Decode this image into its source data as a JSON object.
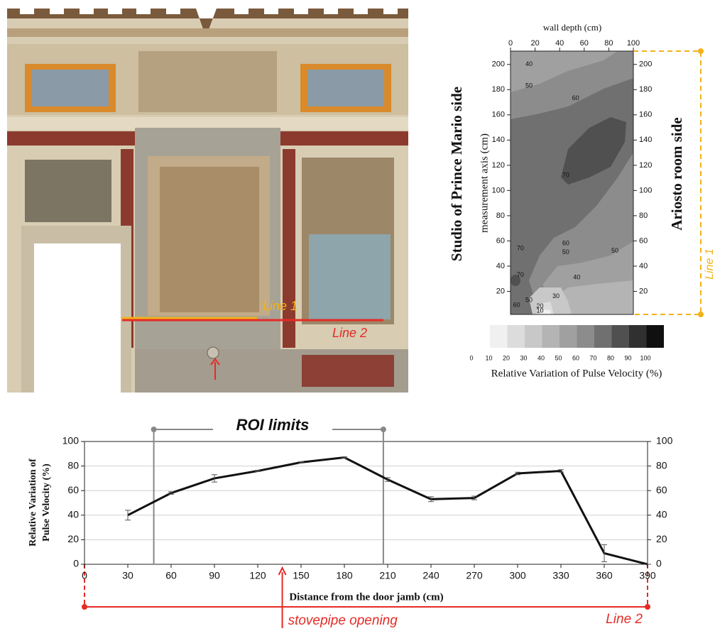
{
  "photo": {
    "line_labels": [
      "Line  1",
      "Line  2"
    ]
  },
  "chart_data": [
    {
      "type": "contour",
      "title_left": "Studio of Prince Mario side",
      "title_right": "Ariosto room side",
      "xlabel": "wall depth (cm)",
      "ylabel": "measurement axis (cm)",
      "xlim": [
        0,
        100
      ],
      "xticks": [
        0,
        20,
        40,
        60,
        80,
        100
      ],
      "ylim": [
        0,
        210
      ],
      "yticks": [
        20,
        40,
        60,
        80,
        100,
        120,
        140,
        160,
        180,
        200
      ],
      "contour_labels": {
        "x": [
          15,
          15,
          53,
          45,
          45,
          45,
          85,
          8,
          8,
          54,
          37,
          15,
          5,
          24,
          24
        ],
        "y": [
          200,
          183,
          173,
          112,
          58,
          51,
          52,
          54,
          33,
          31,
          16,
          13,
          9,
          8,
          4.5
        ],
        "values": [
          40,
          50,
          60,
          70,
          60,
          50,
          50,
          70,
          70,
          40,
          30,
          50,
          60,
          20,
          10
        ]
      },
      "colorbar": {
        "ticks": [
          0,
          10,
          20,
          30,
          40,
          50,
          60,
          70,
          80,
          90,
          100
        ],
        "colors": [
          "#f0f0f0",
          "#dcdcdc",
          "#c8c8c8",
          "#b4b4b4",
          "#a0a0a0",
          "#8c8c8c",
          "#707070",
          "#505050",
          "#303030",
          "#101010"
        ],
        "label": "Relative Variation of Pulse Velocity (%)"
      },
      "annotation": "Line 1"
    },
    {
      "type": "line",
      "x": [
        30,
        60,
        90,
        120,
        150,
        180,
        210,
        240,
        270,
        300,
        330,
        360,
        390
      ],
      "values": [
        40,
        58,
        70,
        76,
        83,
        87,
        69,
        53,
        54,
        74,
        76,
        9,
        0
      ],
      "errors": [
        4,
        1,
        3,
        0.5,
        0.5,
        0.5,
        1.5,
        2,
        1.5,
        1,
        1,
        7,
        0
      ],
      "color": "#111111",
      "xlim": [
        0,
        390
      ],
      "xticks": [
        0,
        30,
        60,
        90,
        120,
        150,
        180,
        210,
        240,
        270,
        300,
        330,
        360,
        390
      ],
      "ylim": [
        0,
        100
      ],
      "yticks": [
        0,
        20,
        40,
        60,
        80,
        100
      ],
      "y2lim": [
        0,
        100
      ],
      "y2ticks": [
        0,
        20,
        40,
        60,
        80,
        100
      ],
      "grid": true,
      "xlabel": "Distance from the door jamb (cm)",
      "ylabel": [
        "Relative Variation of",
        "Pulse Velocity (%)"
      ],
      "roi_label": "ROI limits",
      "roi_x": [
        48,
        207
      ],
      "stovepipe_label": "stovepipe opening",
      "stovepipe_x": 137,
      "line_label": "Line  2"
    }
  ]
}
